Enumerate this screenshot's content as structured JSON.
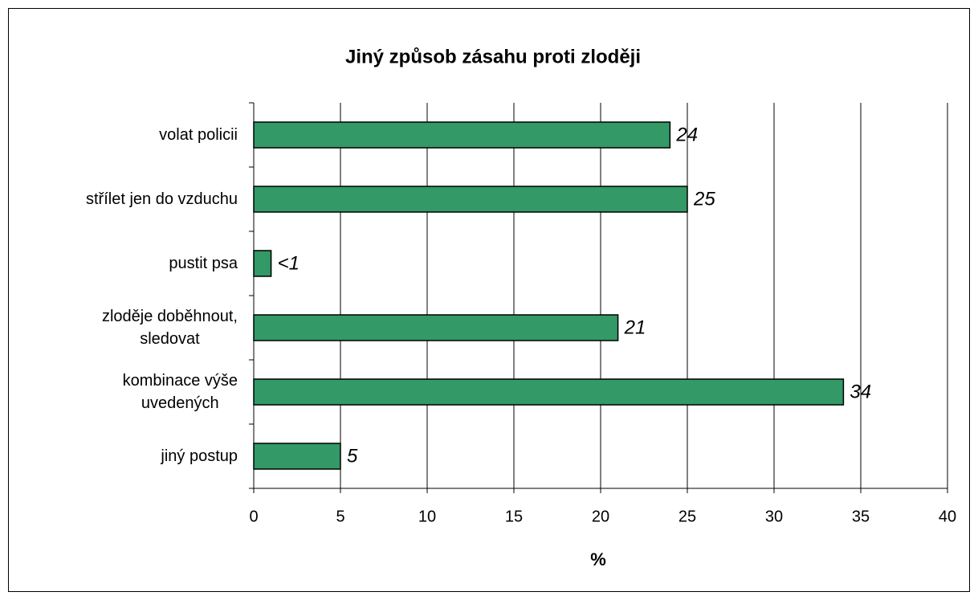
{
  "chart_data": {
    "type": "bar",
    "orientation": "horizontal",
    "title": "Jiný způsob zásahu proti zloději",
    "x_label": "%",
    "categories": [
      "volat policii",
      "střílet jen do vzduchu",
      "pustit psa",
      "zloděje doběhnout,\nsledovat",
      "kombinace výše\nuvedených",
      "jiný postup"
    ],
    "values": [
      24,
      25,
      1,
      21,
      34,
      5
    ],
    "value_labels": [
      "24",
      "25",
      "<1",
      "21",
      "34",
      "5"
    ],
    "color": "#339966",
    "xlim": [
      0,
      40
    ],
    "xticks": [
      0,
      5,
      10,
      15,
      20,
      25,
      30,
      35,
      40
    ],
    "grid": true
  }
}
